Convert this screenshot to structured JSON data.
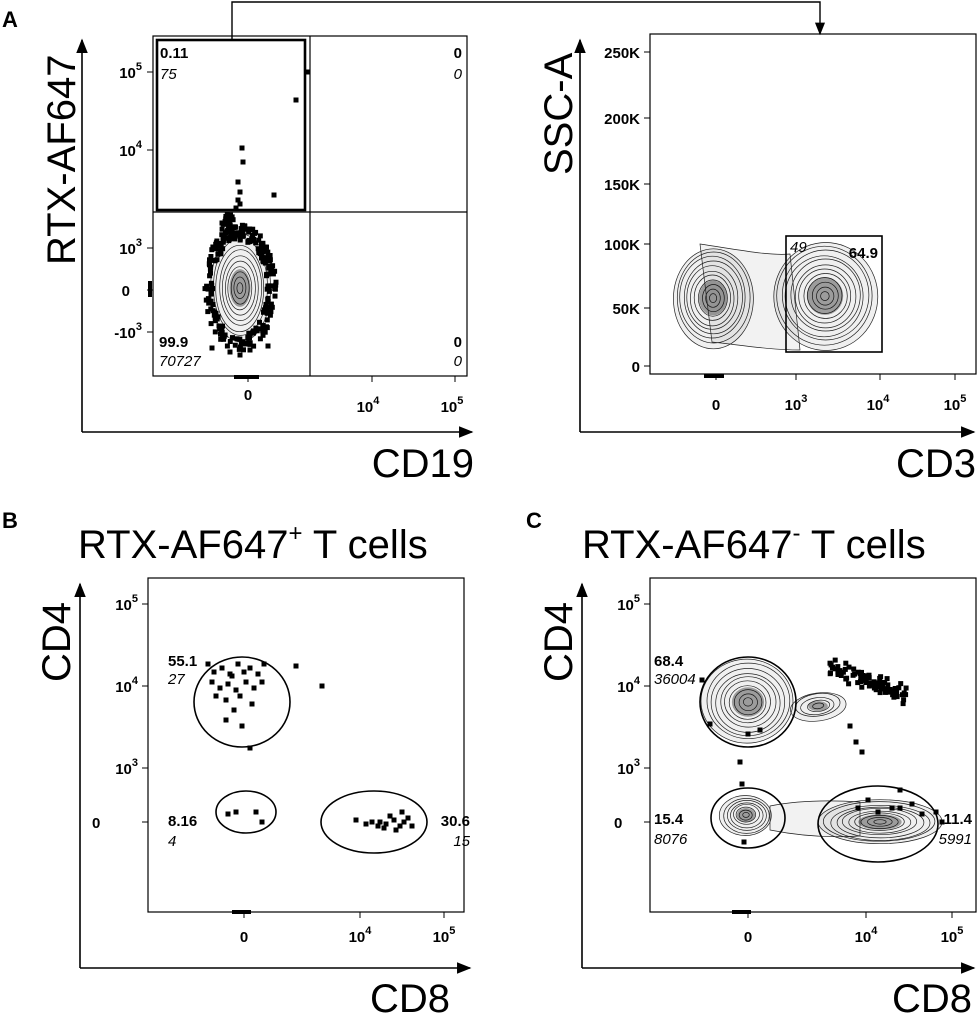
{
  "panels": [
    {
      "id": "A1",
      "letter": "A",
      "ylabel": "RTX-AF647",
      "xlabel": "CD19",
      "y_ticks": [
        {
          "base": "10",
          "exp": "5"
        },
        {
          "base": "10",
          "exp": "4"
        },
        {
          "base": "10",
          "exp": "3"
        },
        {
          "base": "0",
          "exp": ""
        },
        {
          "base": "-10",
          "exp": "3"
        }
      ],
      "x_ticks": [
        {
          "base": "0",
          "exp": ""
        },
        {
          "base": "10",
          "exp": "4"
        },
        {
          "base": "10",
          "exp": "5"
        }
      ],
      "stats": [
        {
          "pct": "0.11",
          "count": "75"
        },
        {
          "pct": "0",
          "count": "0"
        },
        {
          "pct": "99.9",
          "count": "70727"
        },
        {
          "pct": "0",
          "count": "0"
        }
      ]
    },
    {
      "id": "A2",
      "ylabel": "SSC-A",
      "xlabel": "CD3",
      "y_ticks": [
        {
          "base": "250K",
          "exp": ""
        },
        {
          "base": "200K",
          "exp": ""
        },
        {
          "base": "150K",
          "exp": ""
        },
        {
          "base": "100K",
          "exp": ""
        },
        {
          "base": "50K",
          "exp": ""
        },
        {
          "base": "0",
          "exp": ""
        }
      ],
      "x_ticks": [
        {
          "base": "0",
          "exp": ""
        },
        {
          "base": "10",
          "exp": "3"
        },
        {
          "base": "10",
          "exp": "4"
        },
        {
          "base": "10",
          "exp": "5"
        }
      ],
      "stats": [
        {
          "pct": "64.9",
          "count": "49"
        }
      ]
    },
    {
      "id": "B",
      "letter": "B",
      "title": "RTX-AF647",
      "title_sup": "+",
      "title_rest": " T cells",
      "ylabel": "CD4",
      "xlabel": "CD8",
      "y_ticks": [
        {
          "base": "10",
          "exp": "5"
        },
        {
          "base": "10",
          "exp": "4"
        },
        {
          "base": "10",
          "exp": "3"
        },
        {
          "base": "0",
          "exp": ""
        }
      ],
      "x_ticks": [
        {
          "base": "0",
          "exp": ""
        },
        {
          "base": "10",
          "exp": "4"
        },
        {
          "base": "10",
          "exp": "5"
        }
      ],
      "stats": [
        {
          "pct": "55.1",
          "count": "27"
        },
        {
          "pct": "8.16",
          "count": "4"
        },
        {
          "pct": "30.6",
          "count": "15"
        }
      ]
    },
    {
      "id": "C",
      "letter": "C",
      "title": "RTX-AF647",
      "title_sup": "-",
      "title_rest": " T cells",
      "ylabel": "CD4",
      "xlabel": "CD8",
      "y_ticks": [
        {
          "base": "10",
          "exp": "5"
        },
        {
          "base": "10",
          "exp": "4"
        },
        {
          "base": "10",
          "exp": "3"
        },
        {
          "base": "0",
          "exp": ""
        }
      ],
      "x_ticks": [
        {
          "base": "0",
          "exp": ""
        },
        {
          "base": "10",
          "exp": "4"
        },
        {
          "base": "10",
          "exp": "5"
        }
      ],
      "stats": [
        {
          "pct": "68.4",
          "count": "36004"
        },
        {
          "pct": "15.4",
          "count": "8076"
        },
        {
          "pct": "11.4",
          "count": "5991"
        }
      ]
    }
  ],
  "chart_data": [
    {
      "type": "scatter",
      "plot": "contour",
      "xlabel": "CD19",
      "ylabel": "RTX-AF647",
      "x_scale": "biexponential",
      "y_scale": "biexponential",
      "gates": "quadrant",
      "quadrants": [
        {
          "position": "upper-left",
          "percent": 0.11,
          "count": 75
        },
        {
          "position": "upper-right",
          "percent": 0,
          "count": 0
        },
        {
          "position": "lower-left",
          "percent": 99.9,
          "count": 70727
        },
        {
          "position": "lower-right",
          "percent": 0,
          "count": 0
        }
      ],
      "gated": "upper-left"
    },
    {
      "type": "scatter",
      "plot": "contour",
      "xlabel": "CD3",
      "ylabel": "SSC-A",
      "x_scale": "biexponential",
      "y_scale": "linear",
      "ylim": [
        0,
        262144
      ],
      "gates": [
        {
          "shape": "rectangle",
          "percent": 64.9,
          "count": 49
        }
      ]
    },
    {
      "type": "scatter",
      "plot": "dot",
      "title": "RTX-AF647+ T cells",
      "xlabel": "CD8",
      "ylabel": "CD4",
      "x_scale": "biexponential",
      "y_scale": "biexponential",
      "gates": [
        {
          "shape": "ellipse",
          "position": "upper-left",
          "percent": 55.1,
          "count": 27
        },
        {
          "shape": "ellipse",
          "position": "lower-left",
          "percent": 8.16,
          "count": 4
        },
        {
          "shape": "ellipse",
          "position": "lower-right",
          "percent": 30.6,
          "count": 15
        }
      ]
    },
    {
      "type": "scatter",
      "plot": "contour",
      "title": "RTX-AF647- T cells",
      "xlabel": "CD8",
      "ylabel": "CD4",
      "x_scale": "biexponential",
      "y_scale": "biexponential",
      "gates": [
        {
          "shape": "ellipse",
          "position": "upper-left",
          "percent": 68.4,
          "count": 36004
        },
        {
          "shape": "ellipse",
          "position": "lower-left",
          "percent": 15.4,
          "count": 8076
        },
        {
          "shape": "ellipse",
          "position": "lower-right",
          "percent": 11.4,
          "count": 5991
        }
      ]
    }
  ]
}
